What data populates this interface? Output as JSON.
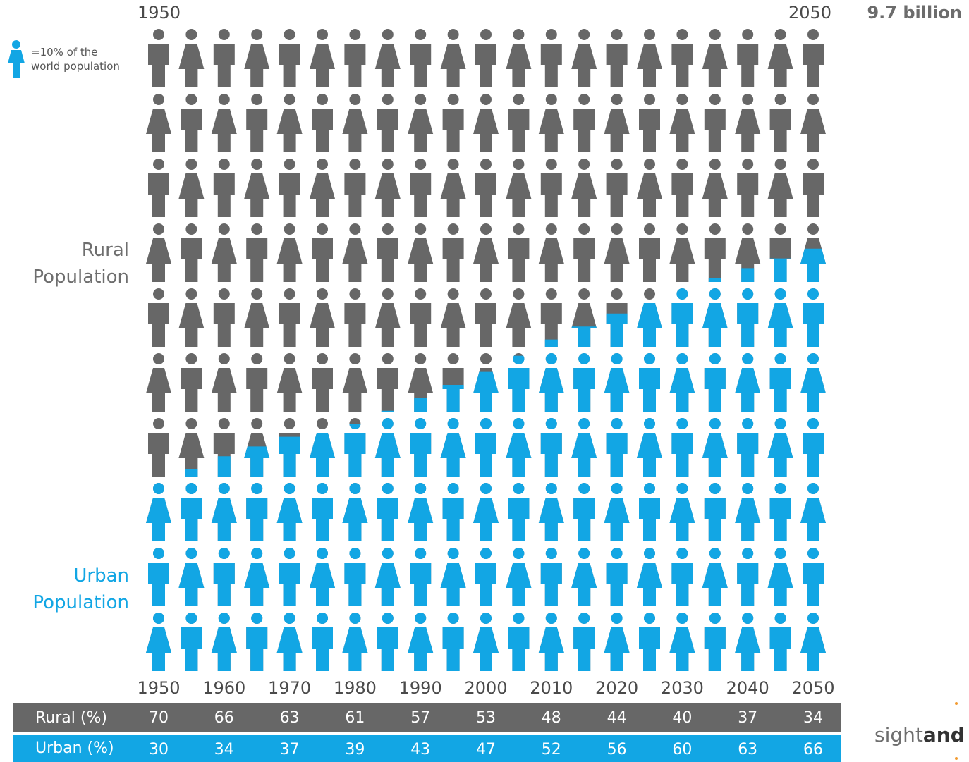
{
  "header": {
    "start_year": "1950",
    "end_year": "2050",
    "total": "9.7 billion"
  },
  "legend": {
    "line1": "=10% of the",
    "line2": "world population",
    "icon": "person-icon"
  },
  "labels": {
    "rural_line1": "Rural",
    "rural_line2": "Population",
    "urban_line1": "Urban",
    "urban_line2": "Population"
  },
  "colors": {
    "rural": "#676767",
    "urban": "#12a6e4"
  },
  "table": {
    "rural_title": "Rural (%)",
    "urban_title": "Urban (%)"
  },
  "logo": {
    "text_light": "sight",
    "text_bold": "and"
  },
  "chart_data": {
    "type": "table",
    "x": [
      "1950",
      "1960",
      "1970",
      "1980",
      "1990",
      "2000",
      "2010",
      "2020",
      "2030",
      "2040",
      "2050"
    ],
    "series": [
      {
        "name": "Rural (%)",
        "values": [
          70,
          66,
          63,
          61,
          57,
          53,
          48,
          44,
          40,
          37,
          34
        ]
      },
      {
        "name": "Urban (%)",
        "values": [
          30,
          34,
          37,
          39,
          43,
          47,
          52,
          56,
          60,
          63,
          66
        ]
      }
    ]
  }
}
